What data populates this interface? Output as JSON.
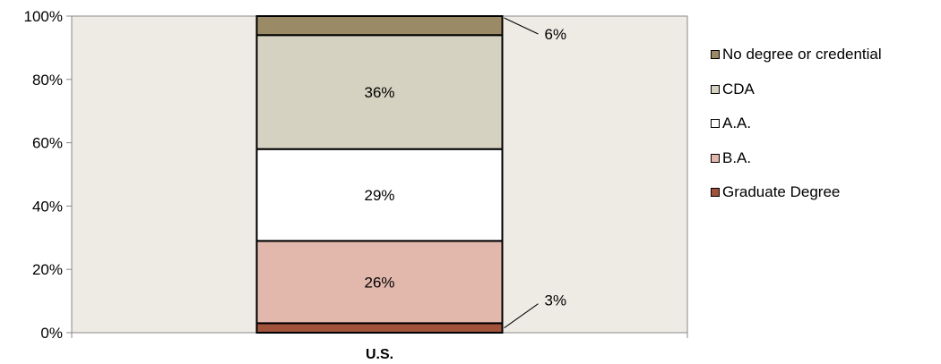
{
  "chart_data": {
    "type": "bar",
    "stacked": true,
    "categories": [
      "U.S."
    ],
    "series": [
      {
        "name": "Graduate Degree",
        "values": [
          3
        ],
        "label": "3%",
        "color": "#a0523a"
      },
      {
        "name": "B.A.",
        "values": [
          26
        ],
        "label": "26%",
        "color": "#e2b8ac"
      },
      {
        "name": "A.A.",
        "values": [
          29
        ],
        "label": "29%",
        "color": "#ffffff"
      },
      {
        "name": "CDA",
        "values": [
          36
        ],
        "label": "36%",
        "color": "#d6d2c2"
      },
      {
        "name": "No degree or credential",
        "values": [
          6
        ],
        "label": "6%",
        "color": "#9b8a66"
      }
    ],
    "ylim": [
      0,
      100
    ],
    "yticks": [
      "0%",
      "20%",
      "40%",
      "60%",
      "80%",
      "100%"
    ],
    "legend_order": [
      "No degree or credential",
      "CDA",
      "A.A.",
      "B.A.",
      "Graduate Degree"
    ],
    "legend_position": "right",
    "plot_background": "#eeebe4",
    "grid": false
  }
}
